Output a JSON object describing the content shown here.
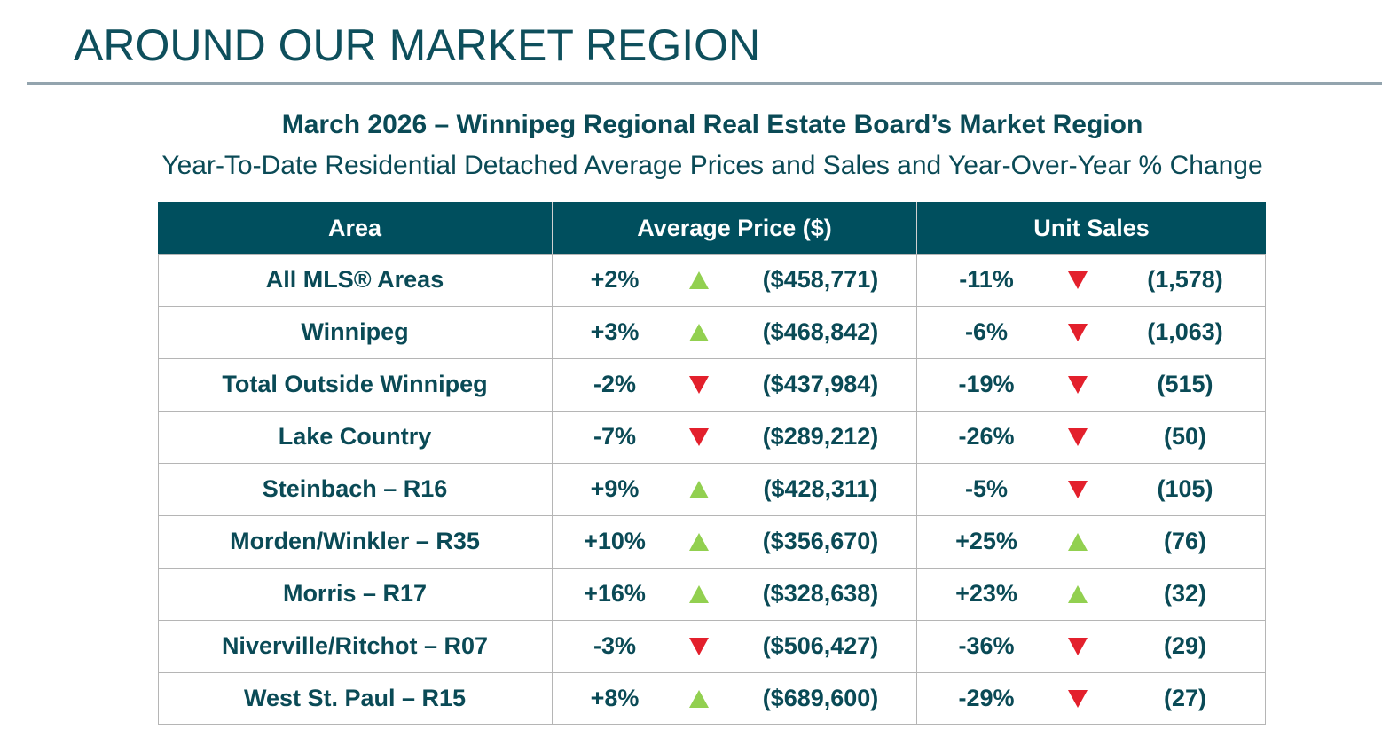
{
  "header": {
    "title": "AROUND OUR MARKET REGION"
  },
  "heading": "March 2026 – Winnipeg Regional Real Estate Board’s Market Region",
  "subheading": "Year-To-Date Residential Detached Average Prices and Sales and Year-Over-Year % Change",
  "table": {
    "columns": [
      "Area",
      "Average Price ($)",
      "Unit Sales"
    ],
    "rows": [
      {
        "area": "All MLS® Areas",
        "price_change": "+2%",
        "price": "($458,771)",
        "sales_change": "-11%",
        "sales": "(1,578)"
      },
      {
        "area": "Winnipeg",
        "price_change": "+3%",
        "price": "($468,842)",
        "sales_change": "-6%",
        "sales": "(1,063)"
      },
      {
        "area": "Total Outside Winnipeg",
        "price_change": "-2%",
        "price": "($437,984)",
        "sales_change": "-19%",
        "sales": "(515)"
      },
      {
        "area": "Lake Country",
        "price_change": "-7%",
        "price": "($289,212)",
        "sales_change": "-26%",
        "sales": "(50)"
      },
      {
        "area": "Steinbach – R16",
        "price_change": "+9%",
        "price": "($428,311)",
        "sales_change": "-5%",
        "sales": "(105)"
      },
      {
        "area": "Morden/Winkler – R35",
        "price_change": "+10%",
        "price": "($356,670)",
        "sales_change": "+25%",
        "sales": "(76)"
      },
      {
        "area": "Morris – R17",
        "price_change": "+16%",
        "price": "($328,638)",
        "sales_change": "+23%",
        "sales": "(32)"
      },
      {
        "area": "Niverville/Ritchot – R07",
        "price_change": "-3%",
        "price": "($506,427)",
        "sales_change": "-36%",
        "sales": "(29)"
      },
      {
        "area": "West St. Paul – R15",
        "price_change": "+8%",
        "price": "($689,600)",
        "sales_change": "-29%",
        "sales": "(27)"
      }
    ]
  }
}
